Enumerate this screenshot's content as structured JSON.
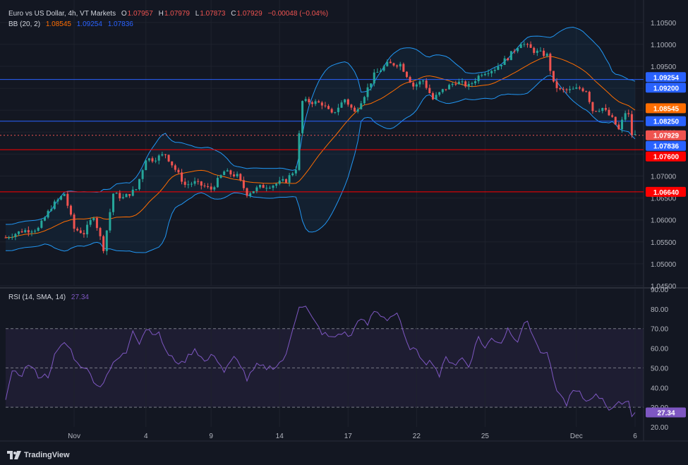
{
  "legend": {
    "main": {
      "symbol": "Euro vs US Dollar, 4h, VT Markets",
      "o_label": "O",
      "o_val": "1.07957",
      "h_label": "H",
      "h_val": "1.07979",
      "l_label": "L",
      "l_val": "1.07873",
      "c_label": "C",
      "c_val": "1.07929",
      "change": "−0.00048 (−0.04%)"
    },
    "bb": {
      "label": "BB (20, 2)",
      "mid": "1.08545",
      "upper": "1.09254",
      "lower": "1.07836"
    },
    "rsi": {
      "label": "RSI (14, SMA, 14)",
      "value": "27.34"
    }
  },
  "colors": {
    "bg": "#131722",
    "grid": "#1e222d",
    "up": "#26a69a",
    "down": "#ef5350",
    "bb_upper": "#2962ff",
    "bb_lower": "#2962ff",
    "bb_basis": "#ff6d00",
    "rsi": "#7e57c2",
    "text": "#d1d4dc",
    "axis": "#b2b5be"
  },
  "branding": {
    "logo_text": "TradingView",
    "logo_icon": "tradingview-icon"
  },
  "chart_data": [
    {
      "type": "candlestick",
      "title": "Euro vs US Dollar, 4h, VT Markets",
      "ylim": [
        1.045,
        1.1085
      ],
      "yticks": [
        "1.10500",
        "1.10000",
        "1.09500",
        "1.09000",
        "1.08500",
        "1.08000",
        "1.07500",
        "1.07000",
        "1.06500",
        "1.06000",
        "1.05500",
        "1.05000",
        "1.04500"
      ],
      "ytick_values": [
        1.105,
        1.1,
        1.095,
        1.09,
        1.085,
        1.08,
        1.075,
        1.07,
        1.065,
        1.06,
        1.055,
        1.05,
        1.045
      ],
      "xticks": [
        "Nov",
        "4",
        "9",
        "14",
        "17",
        "22",
        "25",
        "Dec",
        "6"
      ],
      "xtick_index": [
        21,
        43,
        63,
        84,
        105,
        126,
        147,
        175,
        193
      ],
      "horizontal_lines": [
        {
          "value": 1.092,
          "label": "1.09200",
          "color": "#2962ff"
        },
        {
          "value": 1.0825,
          "label": "1.08250",
          "color": "#2962ff"
        },
        {
          "value": 1.076,
          "label": "1.07600",
          "color": "#ff0000"
        },
        {
          "value": 1.0664,
          "label": "1.06640",
          "color": "#ff0000"
        }
      ],
      "price_labels": [
        {
          "value": 1.09254,
          "label": "1.09254",
          "color": "#2962ff"
        },
        {
          "value": 1.08545,
          "label": "1.08545",
          "color": "#ff6d00"
        },
        {
          "value": 1.07929,
          "label": "1.07929",
          "color": "#ef5350"
        },
        {
          "value": 1.07836,
          "label": "1.07836",
          "color": "#2962ff"
        }
      ],
      "last_close": 1.07929,
      "anchors": [
        [
          0,
          1.056
        ],
        [
          5,
          1.0575
        ],
        [
          10,
          1.058
        ],
        [
          14,
          1.063
        ],
        [
          18,
          1.066
        ],
        [
          21,
          1.058
        ],
        [
          24,
          1.057
        ],
        [
          27,
          1.061
        ],
        [
          30,
          1.0535
        ],
        [
          33,
          1.066
        ],
        [
          36,
          1.065
        ],
        [
          40,
          1.067
        ],
        [
          43,
          1.074
        ],
        [
          45,
          1.0738
        ],
        [
          49,
          1.075
        ],
        [
          55,
          1.068
        ],
        [
          58,
          1.0685
        ],
        [
          63,
          1.067
        ],
        [
          67,
          1.071
        ],
        [
          71,
          1.07
        ],
        [
          74,
          1.066
        ],
        [
          78,
          1.0675
        ],
        [
          82,
          1.068
        ],
        [
          86,
          1.069
        ],
        [
          89,
          1.0718
        ],
        [
          91,
          1.087
        ],
        [
          93,
          1.087
        ],
        [
          97,
          1.0865
        ],
        [
          100,
          1.084
        ],
        [
          104,
          1.0875
        ],
        [
          107,
          1.0845
        ],
        [
          110,
          1.0885
        ],
        [
          113,
          1.093
        ],
        [
          117,
          1.0955
        ],
        [
          121,
          1.0955
        ],
        [
          125,
          1.0905
        ],
        [
          128,
          1.0918
        ],
        [
          131,
          1.0875
        ],
        [
          134,
          1.0895
        ],
        [
          138,
          1.0915
        ],
        [
          142,
          1.0905
        ],
        [
          146,
          1.0935
        ],
        [
          150,
          1.0945
        ],
        [
          154,
          1.097
        ],
        [
          158,
          1.1005
        ],
        [
          162,
          1.0985
        ],
        [
          166,
          1.0975
        ],
        [
          168,
          1.091
        ],
        [
          170,
          1.0895
        ],
        [
          173,
          1.0895
        ],
        [
          176,
          1.09
        ],
        [
          178,
          1.0895
        ],
        [
          180,
          1.085
        ],
        [
          183,
          1.0855
        ],
        [
          186,
          1.083
        ],
        [
          188,
          1.0805
        ],
        [
          190,
          1.0845
        ],
        [
          191,
          1.0838
        ],
        [
          192,
          1.0795
        ],
        [
          193,
          1.0793
        ]
      ],
      "n_bars": 194
    },
    {
      "type": "line",
      "title": "RSI (14, SMA, 14)",
      "ylim": [
        20,
        90
      ],
      "yticks": [
        "90.00",
        "80.00",
        "70.00",
        "60.00",
        "50.00",
        "40.00",
        "30.00",
        "20.00"
      ],
      "ytick_values": [
        90,
        80,
        70,
        60,
        50,
        40,
        30,
        20
      ],
      "bands": {
        "upper": 70,
        "middle": 50,
        "lower": 30
      },
      "current": 27.34,
      "anchors": [
        [
          0,
          35
        ],
        [
          2,
          47
        ],
        [
          5,
          47
        ],
        [
          7,
          52
        ],
        [
          10,
          46
        ],
        [
          13,
          46
        ],
        [
          15,
          56
        ],
        [
          18,
          63
        ],
        [
          20,
          59
        ],
        [
          22,
          52
        ],
        [
          24,
          51
        ],
        [
          27,
          44
        ],
        [
          29,
          40
        ],
        [
          31,
          47
        ],
        [
          34,
          54
        ],
        [
          37,
          58
        ],
        [
          39,
          70
        ],
        [
          41,
          63
        ],
        [
          43,
          70
        ],
        [
          47,
          67
        ],
        [
          50,
          56
        ],
        [
          54,
          52
        ],
        [
          58,
          60
        ],
        [
          61,
          53
        ],
        [
          64,
          57
        ],
        [
          67,
          48
        ],
        [
          70,
          55
        ],
        [
          72,
          52
        ],
        [
          74,
          44
        ],
        [
          77,
          51
        ],
        [
          80,
          50
        ],
        [
          83,
          51
        ],
        [
          86,
          56
        ],
        [
          88,
          70
        ],
        [
          90,
          82
        ],
        [
          92,
          81
        ],
        [
          94,
          75
        ],
        [
          97,
          68
        ],
        [
          100,
          65
        ],
        [
          103,
          68
        ],
        [
          106,
          66
        ],
        [
          108,
          75
        ],
        [
          111,
          72
        ],
        [
          113,
          79
        ],
        [
          117,
          75
        ],
        [
          120,
          78
        ],
        [
          123,
          62
        ],
        [
          126,
          58
        ],
        [
          129,
          53
        ],
        [
          131,
          53
        ],
        [
          133,
          46
        ],
        [
          135,
          55
        ],
        [
          138,
          52
        ],
        [
          140,
          55
        ],
        [
          142,
          51
        ],
        [
          145,
          66
        ],
        [
          147,
          60
        ],
        [
          149,
          65
        ],
        [
          152,
          63
        ],
        [
          154,
          70
        ],
        [
          157,
          64
        ],
        [
          158,
          69
        ],
        [
          160,
          74
        ],
        [
          163,
          61
        ],
        [
          165,
          56
        ],
        [
          166,
          58
        ],
        [
          168,
          43
        ],
        [
          170,
          36
        ],
        [
          172,
          32
        ],
        [
          174,
          38
        ],
        [
          176,
          37
        ],
        [
          178,
          33
        ],
        [
          180,
          36
        ],
        [
          183,
          35
        ],
        [
          185,
          29
        ],
        [
          187,
          30
        ],
        [
          189,
          33
        ],
        [
          191,
          33
        ],
        [
          192,
          26
        ],
        [
          193,
          27.34
        ]
      ],
      "n_points": 194
    }
  ]
}
